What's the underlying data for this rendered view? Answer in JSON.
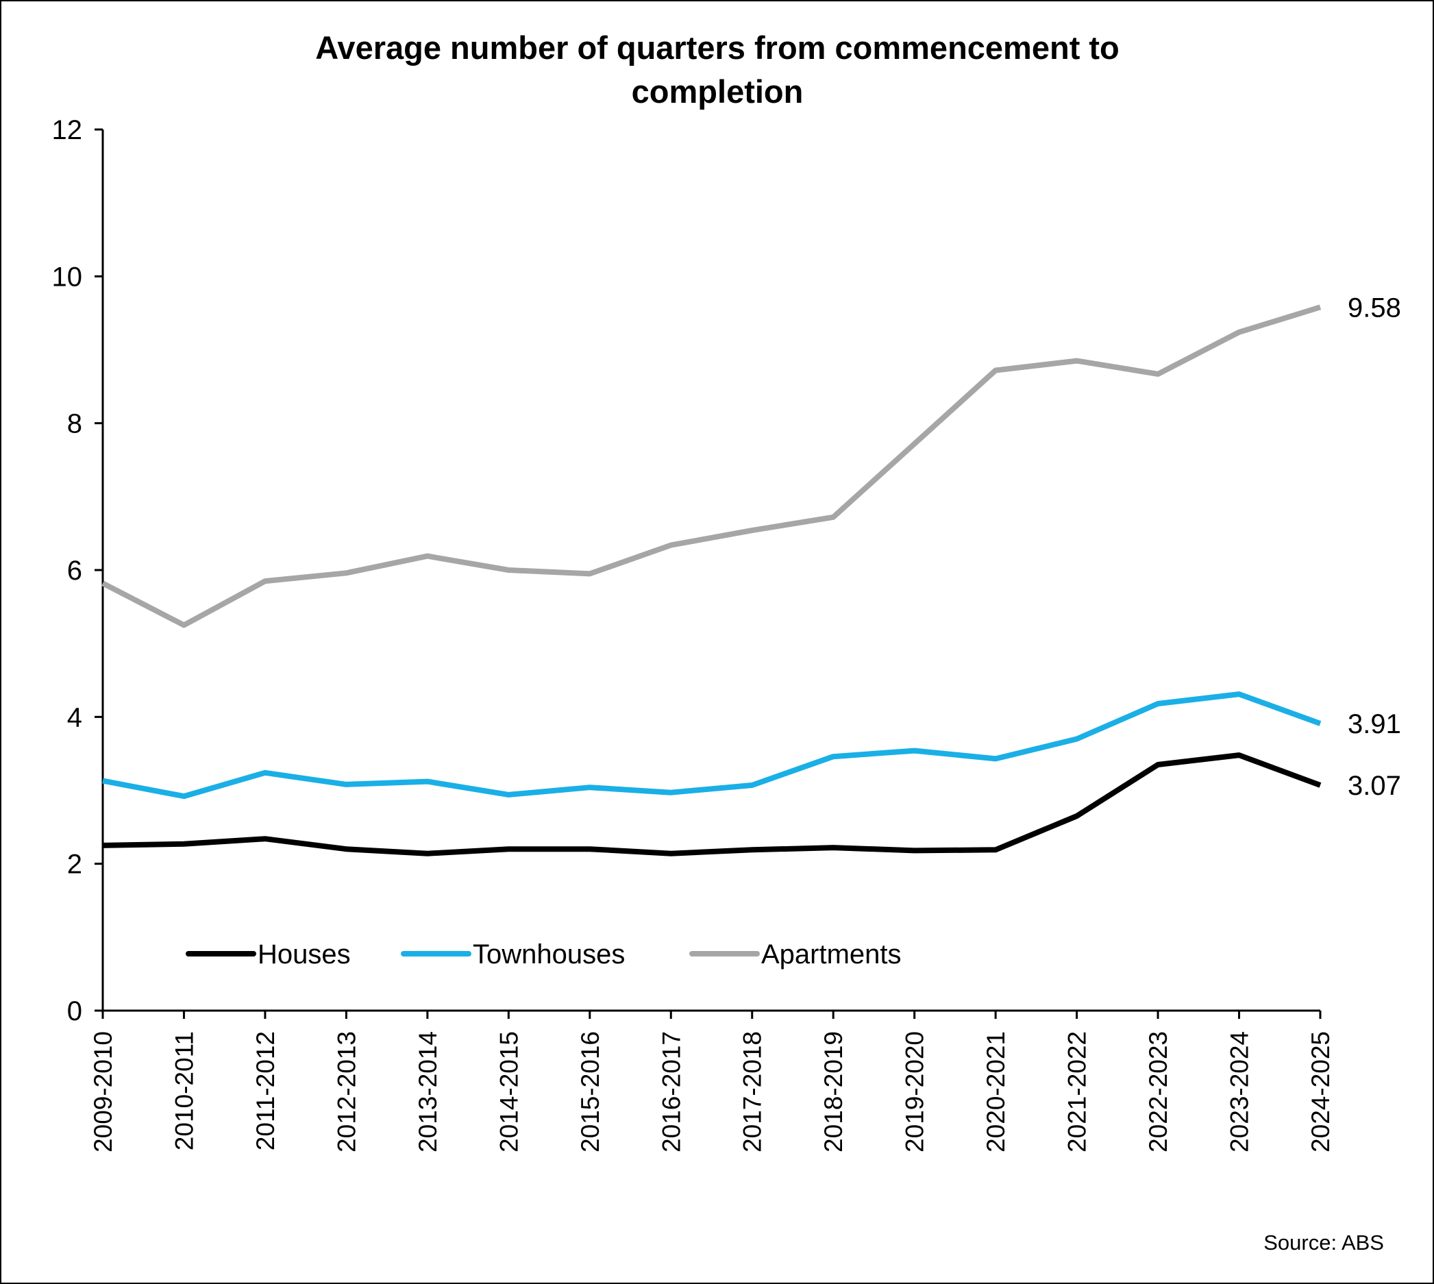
{
  "chart_data": {
    "type": "line",
    "title_lines": [
      "Average number of quarters from commencement to",
      "completion"
    ],
    "categories": [
      "2009-2010",
      "2010-2011",
      "2011-2012",
      "2012-2013",
      "2013-2014",
      "2014-2015",
      "2015-2016",
      "2016-2017",
      "2017-2018",
      "2018-2019",
      "2019-2020",
      "2020-2021",
      "2021-2022",
      "2022-2023",
      "2023-2024",
      "2024-2025"
    ],
    "ylim": [
      0,
      12
    ],
    "yticks": [
      0,
      2,
      4,
      6,
      8,
      10,
      12
    ],
    "ytick_labels": [
      "0",
      "2",
      "4",
      "6",
      "8",
      "10",
      "12"
    ],
    "series": [
      {
        "name": "Houses",
        "color": "#000000",
        "values": [
          2.25,
          2.27,
          2.34,
          2.2,
          2.14,
          2.2,
          2.2,
          2.14,
          2.19,
          2.22,
          2.18,
          2.19,
          2.65,
          3.35,
          3.48,
          3.07
        ],
        "end_label": "3.07"
      },
      {
        "name": "Townhouses",
        "color": "#1AAFE6",
        "values": [
          3.13,
          2.92,
          3.24,
          3.08,
          3.12,
          2.94,
          3.04,
          2.97,
          3.07,
          3.46,
          3.54,
          3.43,
          3.7,
          4.18,
          4.31,
          3.91
        ],
        "end_label": "3.91"
      },
      {
        "name": "Apartments",
        "color": "#A6A6A6",
        "values": [
          5.82,
          5.25,
          5.85,
          5.96,
          6.19,
          6.0,
          5.95,
          6.34,
          6.54,
          6.72,
          7.72,
          8.72,
          8.85,
          8.67,
          9.24,
          9.58
        ],
        "end_label": "9.58"
      }
    ],
    "legend_position": "bottom-left inside plot",
    "grid": false,
    "source": "Source: ABS"
  }
}
